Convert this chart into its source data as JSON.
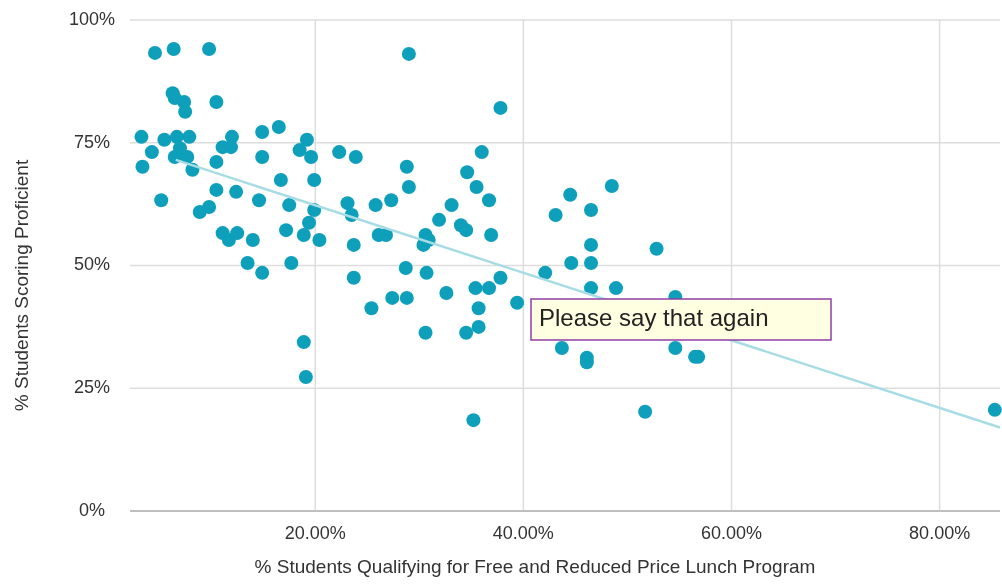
{
  "chart_data": {
    "type": "scatter",
    "xlabel": "% Students Qualifying for Free and Reduced Price Lunch Program",
    "ylabel": "% Students Scoring Proficient",
    "xlim": [
      2.2,
      85.8
    ],
    "ylim": [
      0,
      100
    ],
    "xticks": [
      {
        "value": 20,
        "label": "20.00%"
      },
      {
        "value": 40,
        "label": "40.00%"
      },
      {
        "value": 60,
        "label": "60.00%"
      },
      {
        "value": 80,
        "label": "80.00%"
      }
    ],
    "yticks": [
      {
        "value": 0,
        "label": "0%"
      },
      {
        "value": 25,
        "label": "25%"
      },
      {
        "value": 50,
        "label": "50%"
      },
      {
        "value": 75,
        "label": "75%"
      },
      {
        "value": 100,
        "label": "100%"
      }
    ],
    "grid": true,
    "annotations": [
      "Please say that again"
    ],
    "series": [
      {
        "marker": "circle",
        "color": "#0e9fbb",
        "x": [
          3.3,
          4.3,
          3.4,
          5.2,
          4.6,
          6.4,
          9.8,
          29.0,
          6.3,
          6.5,
          7.4,
          7.5,
          10.5,
          37.8,
          5.5,
          6.7,
          7.9,
          6.5,
          7.0,
          7.7,
          8.2,
          10.5,
          11.1,
          12.0,
          11.9,
          14.9,
          16.5,
          14.9,
          18.5,
          19.2,
          19.6,
          22.3,
          23.9,
          16.7,
          19.9,
          10.5,
          12.4,
          14.6,
          17.5,
          19.9,
          8.9,
          9.8,
          23.1,
          23.5,
          17.2,
          19.4,
          18.9,
          20.4,
          11.1,
          11.7,
          12.5,
          14.0,
          23.7,
          13.5,
          14.9,
          17.7,
          18.9,
          19.1,
          23.7,
          36.0,
          28.8,
          29.0,
          34.6,
          35.5,
          36.7,
          33.1,
          34.0,
          34.5,
          36.9,
          25.8,
          27.3,
          26.1,
          26.8,
          31.9,
          30.6,
          30.9,
          30.4,
          43.1,
          44.5,
          46.5,
          48.5,
          46.5,
          52.8,
          28.7,
          30.7,
          25.4,
          27.4,
          28.8,
          32.6,
          35.4,
          36.7,
          37.8,
          35.7,
          39.4,
          30.6,
          34.5,
          35.7,
          35.2,
          42.1,
          44.6,
          46.5,
          46.5,
          48.9,
          43.7,
          46.1,
          46.1,
          54.6,
          56.8,
          56.5,
          51.7,
          85.3,
          54.6
        ],
        "values": [
          76.2,
          73.1,
          70.1,
          63.3,
          93.3,
          94.1,
          94.1,
          93.1,
          85.1,
          84.1,
          83.3,
          81.3,
          83.3,
          82.1,
          75.6,
          76.2,
          76.2,
          72.1,
          73.9,
          72.1,
          69.5,
          71.1,
          74.1,
          76.2,
          74.1,
          77.2,
          78.2,
          72.1,
          73.5,
          75.6,
          72.1,
          73.1,
          72.1,
          67.4,
          67.4,
          65.4,
          65.0,
          63.3,
          62.3,
          61.3,
          60.9,
          61.9,
          62.7,
          60.3,
          57.2,
          58.7,
          56.2,
          55.2,
          56.6,
          55.2,
          56.6,
          55.2,
          54.2,
          50.5,
          48.5,
          50.5,
          34.4,
          27.3,
          47.5,
          73.1,
          70.1,
          66.0,
          69.0,
          66.0,
          63.3,
          62.3,
          58.2,
          57.2,
          56.2,
          62.3,
          63.3,
          56.2,
          56.2,
          59.3,
          56.2,
          55.2,
          54.2,
          60.3,
          64.4,
          61.3,
          66.2,
          54.2,
          53.4,
          49.5,
          48.5,
          41.3,
          43.4,
          43.4,
          44.4,
          45.4,
          45.4,
          47.5,
          41.3,
          42.4,
          36.3,
          36.3,
          37.5,
          18.5,
          48.5,
          50.5,
          50.5,
          45.4,
          45.4,
          33.2,
          31.2,
          30.3,
          33.2,
          31.4,
          31.4,
          20.2,
          20.6,
          43.6
        ]
      },
      {
        "type": "line",
        "marker": "none",
        "color": "#a8dce5",
        "x": [
          6.6,
          85.8
        ],
        "values": [
          71.5,
          17.0
        ]
      }
    ]
  }
}
